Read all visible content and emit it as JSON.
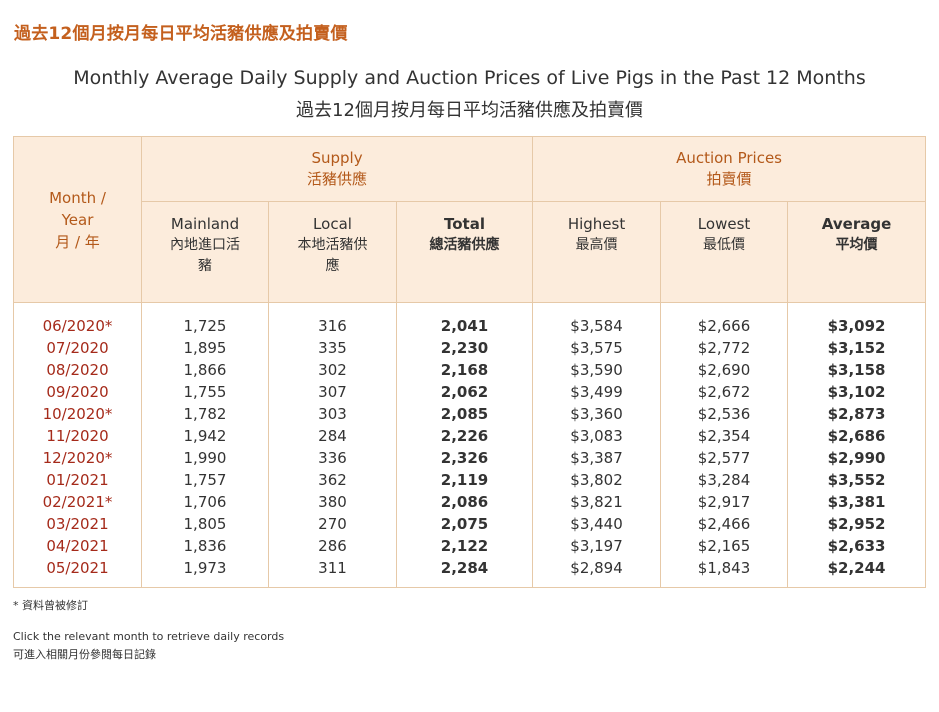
{
  "page_heading": "過去12個月按月每日平均活豬供應及拍賣價",
  "title_en": "Monthly Average Daily Supply and Auction Prices of Live Pigs in the Past 12 Months",
  "title_zh": "過去12個月按月每日平均活豬供應及拍賣價",
  "table": {
    "month_header": {
      "en1": "Month /",
      "en2": "Year",
      "zh": "月 / 年"
    },
    "supply_group": {
      "en": "Supply",
      "zh": "活豬供應"
    },
    "auction_group": {
      "en": "Auction Prices",
      "zh": "拍賣價"
    },
    "columns": {
      "mainland": {
        "en": "Mainland",
        "zh": "內地進口活豬"
      },
      "local": {
        "en": "Local",
        "zh": "本地活豬供應"
      },
      "total": {
        "en": "Total",
        "zh": "總活豬供應"
      },
      "highest": {
        "en": "Highest",
        "zh": "最高價"
      },
      "lowest": {
        "en": "Lowest",
        "zh": "最低價"
      },
      "average": {
        "en": "Average",
        "zh": "平均價"
      }
    },
    "rows": [
      {
        "month": "06/2020*",
        "mainland": "1,725",
        "local": "316",
        "total": "2,041",
        "highest": "$3,584",
        "lowest": "$2,666",
        "average": "$3,092"
      },
      {
        "month": "07/2020",
        "mainland": "1,895",
        "local": "335",
        "total": "2,230",
        "highest": "$3,575",
        "lowest": "$2,772",
        "average": "$3,152"
      },
      {
        "month": "08/2020",
        "mainland": "1,866",
        "local": "302",
        "total": "2,168",
        "highest": "$3,590",
        "lowest": "$2,690",
        "average": "$3,158"
      },
      {
        "month": "09/2020",
        "mainland": "1,755",
        "local": "307",
        "total": "2,062",
        "highest": "$3,499",
        "lowest": "$2,672",
        "average": "$3,102"
      },
      {
        "month": "10/2020*",
        "mainland": "1,782",
        "local": "303",
        "total": "2,085",
        "highest": "$3,360",
        "lowest": "$2,536",
        "average": "$2,873"
      },
      {
        "month": "11/2020",
        "mainland": "1,942",
        "local": "284",
        "total": "2,226",
        "highest": "$3,083",
        "lowest": "$2,354",
        "average": "$2,686"
      },
      {
        "month": "12/2020*",
        "mainland": "1,990",
        "local": "336",
        "total": "2,326",
        "highest": "$3,387",
        "lowest": "$2,577",
        "average": "$2,990"
      },
      {
        "month": "01/2021",
        "mainland": "1,757",
        "local": "362",
        "total": "2,119",
        "highest": "$3,802",
        "lowest": "$3,284",
        "average": "$3,552"
      },
      {
        "month": "02/2021*",
        "mainland": "1,706",
        "local": "380",
        "total": "2,086",
        "highest": "$3,821",
        "lowest": "$2,917",
        "average": "$3,381"
      },
      {
        "month": "03/2021",
        "mainland": "1,805",
        "local": "270",
        "total": "2,075",
        "highest": "$3,440",
        "lowest": "$2,466",
        "average": "$2,952"
      },
      {
        "month": "04/2021",
        "mainland": "1,836",
        "local": "286",
        "total": "2,122",
        "highest": "$3,197",
        "lowest": "$2,165",
        "average": "$2,633"
      },
      {
        "month": "05/2021",
        "mainland": "1,973",
        "local": "311",
        "total": "2,284",
        "highest": "$2,894",
        "lowest": "$1,843",
        "average": "$2,244"
      }
    ]
  },
  "footnotes": {
    "revised": "* 資料曾被修訂",
    "click_en": "Click the relevant month to retrieve daily records",
    "click_zh": "可進入相關月份參閱每日記錄"
  }
}
